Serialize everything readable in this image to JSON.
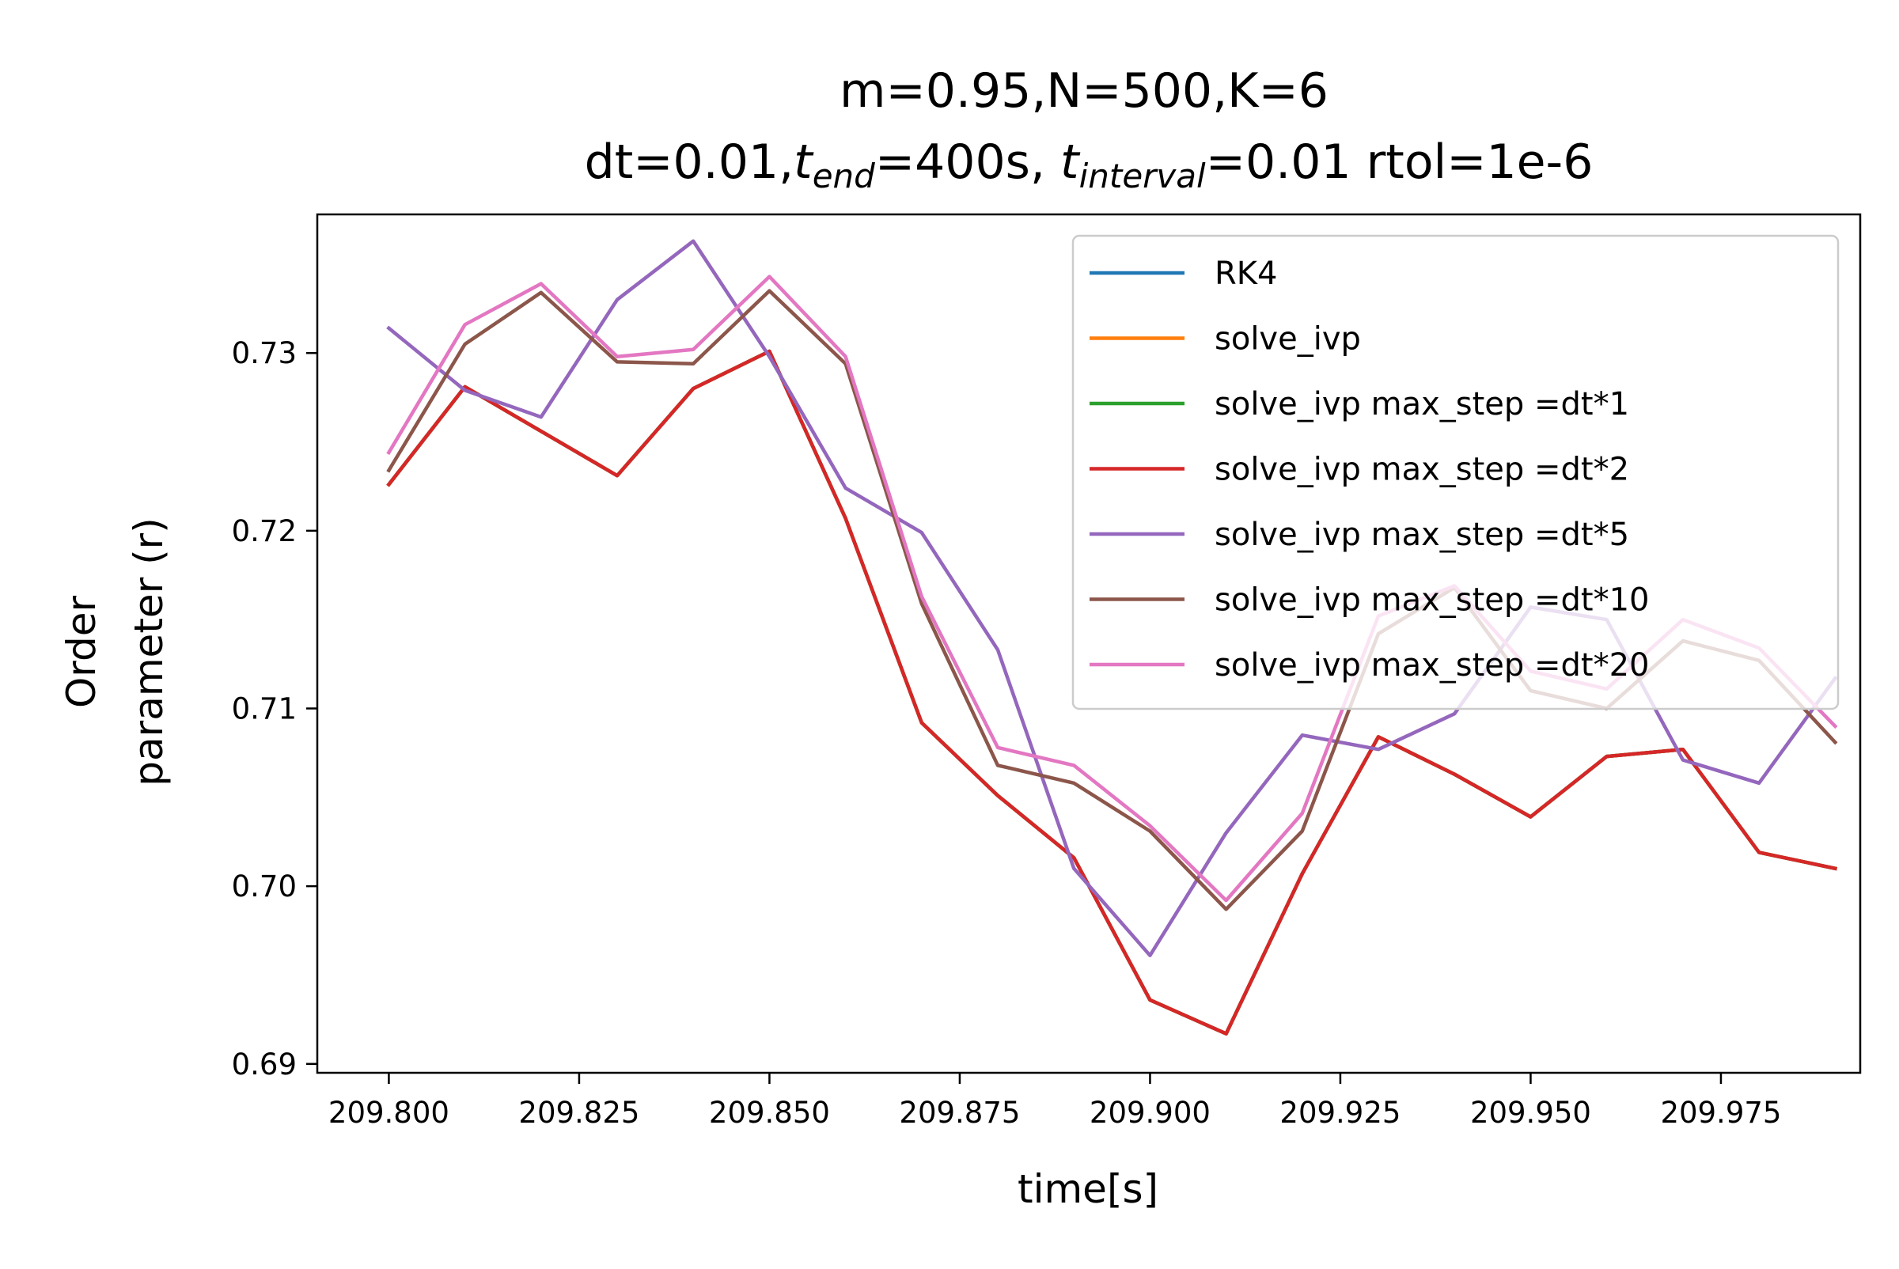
{
  "chart_data": {
    "type": "line",
    "title_line1": "m=0.95,N=500,K=6",
    "title_line2": {
      "prefix": "dt=0.01,",
      "t_end_base": "t",
      "t_end_sub": "end",
      "t_end_value": "=400s, ",
      "t_interval_base": "t",
      "t_interval_sub": "interval",
      "t_interval_value": "=0.01 rtol=1e-6"
    },
    "xlabel": "time[s]",
    "ylabel_line1": "Order",
    "ylabel_line2": "parameter (r)",
    "xlim": [
      209.7906,
      209.9933
    ],
    "ylim": [
      0.6895,
      0.7378
    ],
    "xticks": [
      209.8,
      209.825,
      209.85,
      209.875,
      209.9,
      209.925,
      209.95,
      209.975
    ],
    "xtick_labels": [
      "209.800",
      "209.825",
      "209.850",
      "209.875",
      "209.900",
      "209.925",
      "209.950",
      "209.975"
    ],
    "yticks": [
      0.69,
      0.7,
      0.71,
      0.72,
      0.73
    ],
    "ytick_labels": [
      "0.69",
      "0.70",
      "0.71",
      "0.72",
      "0.73"
    ],
    "grid": false,
    "legend_position": "upper right",
    "x": [
      209.8,
      209.81,
      209.82,
      209.83,
      209.84,
      209.85,
      209.86,
      209.87,
      209.88,
      209.89,
      209.9,
      209.91,
      209.92,
      209.93,
      209.94,
      209.95,
      209.96,
      209.97,
      209.98,
      209.99
    ],
    "series": [
      {
        "name": "RK4",
        "color": "#1f77b4",
        "values": [
          0.7226,
          0.7281,
          0.7256,
          0.7231,
          0.728,
          0.7301,
          0.7207,
          0.7092,
          0.7051,
          0.7016,
          0.6936,
          0.6917,
          0.7007,
          0.7084,
          0.7063,
          0.7039,
          0.7073,
          0.7077,
          0.7019,
          0.701
        ]
      },
      {
        "name": "solve_ivp",
        "color": "#ff7f0e",
        "values": [
          0.7226,
          0.7281,
          0.7256,
          0.7231,
          0.728,
          0.7301,
          0.7207,
          0.7092,
          0.7051,
          0.7016,
          0.6936,
          0.6917,
          0.7007,
          0.7084,
          0.7063,
          0.7039,
          0.7073,
          0.7077,
          0.7019,
          0.701
        ]
      },
      {
        "name": "solve_ivp max_step =dt*1",
        "color": "#2ca02c",
        "values": [
          0.7226,
          0.7281,
          0.7256,
          0.7231,
          0.728,
          0.7301,
          0.7207,
          0.7092,
          0.7051,
          0.7016,
          0.6936,
          0.6917,
          0.7007,
          0.7084,
          0.7063,
          0.7039,
          0.7073,
          0.7077,
          0.7019,
          0.701
        ]
      },
      {
        "name": "solve_ivp max_step =dt*2",
        "color": "#d62728",
        "values": [
          0.7226,
          0.7281,
          0.7256,
          0.7231,
          0.728,
          0.7301,
          0.7207,
          0.7092,
          0.7051,
          0.7016,
          0.6936,
          0.6917,
          0.7007,
          0.7084,
          0.7063,
          0.7039,
          0.7073,
          0.7077,
          0.7019,
          0.701
        ]
      },
      {
        "name": "solve_ivp max_step =dt*5",
        "color": "#9467bd",
        "values": [
          0.7314,
          0.7279,
          0.7264,
          0.733,
          0.7363,
          0.7298,
          0.7224,
          0.7199,
          0.7133,
          0.701,
          0.6961,
          0.703,
          0.7085,
          0.7077,
          0.7097,
          0.7157,
          0.715,
          0.7071,
          0.7058,
          0.7117
        ]
      },
      {
        "name": "solve_ivp max_step =dt*10",
        "color": "#8c564b",
        "values": [
          0.7234,
          0.7305,
          0.7334,
          0.7295,
          0.7294,
          0.7335,
          0.7294,
          0.7159,
          0.7068,
          0.7058,
          0.7031,
          0.6987,
          0.7031,
          0.7142,
          0.7168,
          0.711,
          0.71,
          0.7138,
          0.7127,
          0.7081
        ]
      },
      {
        "name": "solve_ivp max_step =dt*20",
        "color": "#e377c2",
        "values": [
          0.7244,
          0.7316,
          0.7339,
          0.7298,
          0.7302,
          0.7343,
          0.7298,
          0.7163,
          0.7078,
          0.7068,
          0.7034,
          0.6992,
          0.7041,
          0.7152,
          0.7169,
          0.7121,
          0.7111,
          0.715,
          0.7134,
          0.709
        ]
      }
    ]
  }
}
